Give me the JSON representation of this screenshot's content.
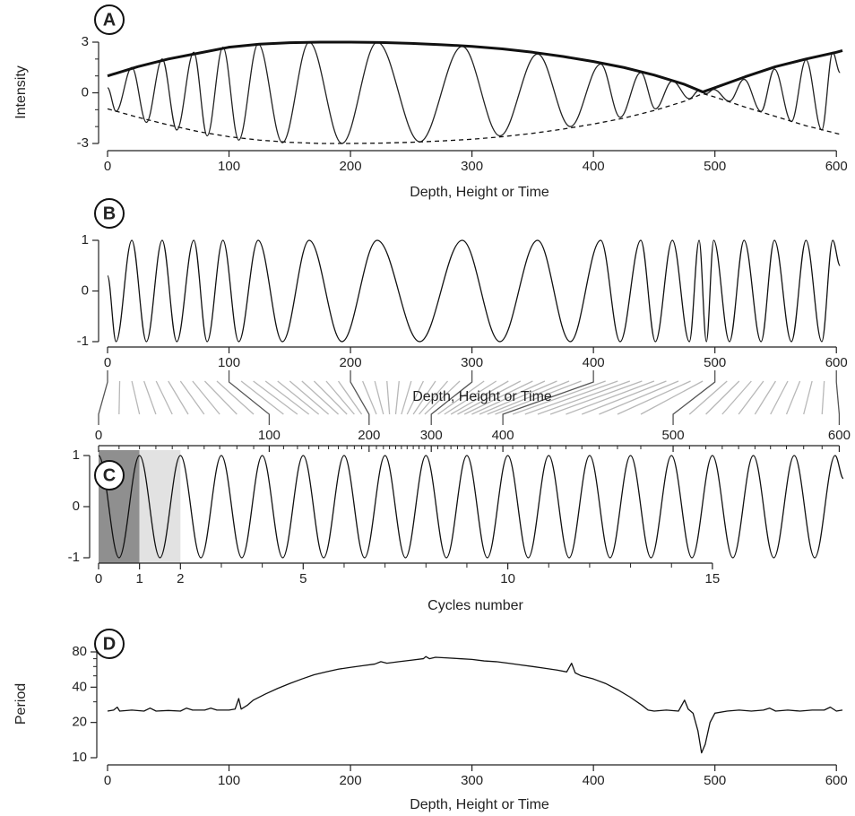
{
  "chart_data": [
    {
      "type": "line",
      "label": "A",
      "ylabel": "Intensity",
      "xlabel": "Depth, Height or Time",
      "xlim": [
        0,
        605
      ],
      "xticks": [
        0,
        100,
        200,
        300,
        400,
        500,
        600
      ],
      "ylim": [
        -3,
        3
      ],
      "yticks": [
        -3,
        0,
        3
      ],
      "yminor": [
        -2,
        -1,
        1,
        2
      ],
      "series": [
        {
          "color": "#222222",
          "style": "thin",
          "interpolation": "extrema",
          "x": [
            0,
            7,
            20,
            32,
            45,
            57,
            71,
            82,
            95,
            108,
            124,
            144,
            166,
            193,
            222,
            257,
            292,
            323,
            354,
            381,
            406,
            422,
            439,
            451,
            465,
            479,
            487,
            493,
            499,
            512,
            524,
            538,
            549,
            563,
            575,
            588,
            597,
            603
          ],
          "values": [
            0.3,
            -1.1,
            1.5,
            -1.75,
            2.0,
            -2.2,
            2.4,
            -2.55,
            2.7,
            -2.8,
            2.9,
            -2.95,
            3.0,
            -3.0,
            3.0,
            -2.9,
            2.75,
            -2.55,
            2.3,
            -2.0,
            1.7,
            -1.45,
            1.2,
            -0.95,
            0.7,
            -0.35,
            0.15,
            -0.05,
            0.2,
            -0.5,
            0.8,
            -1.1,
            1.4,
            -1.7,
            1.95,
            -2.2,
            2.4,
            1.2
          ]
        },
        {
          "color": "#111111",
          "style": "thick",
          "interpolation": "linear",
          "x": [
            0,
            25,
            50,
            75,
            100,
            125,
            150,
            175,
            200,
            225,
            250,
            275,
            300,
            325,
            350,
            375,
            400,
            425,
            450,
            475,
            490,
            500,
            525,
            550,
            575,
            600,
            605
          ],
          "values": [
            1.0,
            1.55,
            2.0,
            2.35,
            2.7,
            2.88,
            2.97,
            3.0,
            3.0,
            2.98,
            2.93,
            2.85,
            2.75,
            2.6,
            2.4,
            2.15,
            1.85,
            1.5,
            1.05,
            0.5,
            0.05,
            0.3,
            0.95,
            1.55,
            2.0,
            2.4,
            2.5
          ]
        },
        {
          "color": "#111111",
          "style": "dashed",
          "interpolation": "linear",
          "x": [
            0,
            25,
            50,
            75,
            100,
            125,
            150,
            175,
            200,
            225,
            250,
            275,
            300,
            325,
            350,
            375,
            400,
            425,
            450,
            475,
            490,
            500,
            525,
            550,
            575,
            600,
            605
          ],
          "values": [
            -0.95,
            -1.45,
            -1.9,
            -2.3,
            -2.6,
            -2.8,
            -2.93,
            -3.0,
            -3.0,
            -2.98,
            -2.93,
            -2.85,
            -2.75,
            -2.6,
            -2.4,
            -2.15,
            -1.85,
            -1.5,
            -1.05,
            -0.5,
            -0.05,
            -0.25,
            -0.85,
            -1.4,
            -1.95,
            -2.4,
            -2.5
          ]
        }
      ]
    },
    {
      "type": "line",
      "label": "B",
      "xlabel": "Depth, Height or Time",
      "xlim": [
        0,
        605
      ],
      "xticks": [
        0,
        100,
        200,
        300,
        400,
        500,
        600
      ],
      "ylim": [
        -1,
        1
      ],
      "yticks": [
        -1,
        0,
        1
      ],
      "series": [
        {
          "color": "#111111",
          "style": "thin",
          "interpolation": "extrema",
          "x": [
            0,
            7,
            20,
            32,
            45,
            57,
            71,
            82,
            95,
            108,
            124,
            144,
            166,
            193,
            222,
            257,
            292,
            323,
            354,
            381,
            406,
            422,
            439,
            451,
            465,
            479,
            487,
            493,
            499,
            512,
            524,
            538,
            549,
            563,
            575,
            588,
            597,
            603
          ],
          "values": [
            0.3,
            -1,
            1,
            -1,
            1,
            -1,
            1,
            -1,
            1,
            -1,
            1,
            -1,
            1,
            -1,
            1,
            -1,
            1,
            -1,
            1,
            -1,
            1,
            -1,
            1,
            -1,
            1,
            -1,
            1,
            -1,
            1,
            -1,
            1,
            -1,
            1,
            -1,
            1,
            -1,
            1,
            0.5
          ]
        }
      ]
    },
    {
      "type": "line",
      "label": "C",
      "xlabel": "Cycles number",
      "xlim": [
        0,
        18.2
      ],
      "xticks": [
        0,
        1,
        2,
        5,
        10,
        15
      ],
      "xminor": [
        3,
        4,
        6,
        7,
        8,
        9,
        11,
        12,
        13,
        14
      ],
      "ylim": [
        -1,
        1
      ],
      "yticks": [
        -1,
        0,
        1
      ],
      "bands": [
        {
          "from": 0,
          "to": 1,
          "color": "#8f8f8f"
        },
        {
          "from": 1,
          "to": 2,
          "color": "#e2e2e2"
        }
      ],
      "depth_axis": {
        "ticks": [
          0,
          100,
          200,
          300,
          400,
          500,
          600
        ],
        "cycles": [
          0,
          4.17,
          6.61,
          8.13,
          9.88,
          14.04,
          18.1
        ]
      },
      "depth_lines": {
        "depths": [
          10,
          20,
          30,
          40,
          50,
          60,
          70,
          80,
          90,
          110,
          120,
          130,
          140,
          150,
          160,
          170,
          180,
          190,
          210,
          220,
          230,
          240,
          250,
          260,
          270,
          280,
          290,
          310,
          320,
          330,
          340,
          350,
          360,
          370,
          380,
          390,
          410,
          420,
          430,
          440,
          450,
          460,
          470,
          480,
          490,
          510,
          520,
          530,
          540,
          550,
          560,
          570,
          580,
          590
        ],
        "cycles": [
          0.5,
          1,
          1.4,
          1.8,
          2.19,
          2.58,
          2.96,
          3.38,
          3.79,
          4.52,
          4.86,
          5.14,
          5.38,
          5.62,
          5.86,
          6.07,
          6.25,
          6.43,
          6.79,
          6.96,
          7.11,
          7.26,
          7.4,
          7.54,
          7.69,
          7.83,
          7.97,
          8.29,
          8.45,
          8.61,
          8.77,
          8.94,
          9.12,
          9.31,
          9.5,
          9.69,
          10.12,
          10.42,
          10.73,
          11.04,
          11.42,
          11.81,
          12.23,
          12.68,
          13.25,
          14.44,
          14.84,
          15.24,
          15.64,
          16.04,
          16.42,
          16.81,
          17.23,
          17.68
        ]
      },
      "series": [
        {
          "color": "#111111",
          "style": "thin",
          "interpolation": "extrema",
          "x": [
            0,
            0.5,
            1,
            1.5,
            2,
            2.5,
            3,
            3.5,
            4,
            4.5,
            5,
            5.5,
            6,
            6.5,
            7,
            7.5,
            8,
            8.5,
            9,
            9.5,
            10,
            10.5,
            11,
            11.5,
            12,
            12.5,
            13,
            13.5,
            14,
            14.5,
            15,
            15.5,
            16,
            16.5,
            17,
            17.5,
            18,
            18.2
          ],
          "values": [
            1,
            -1,
            1,
            -1,
            1,
            -1,
            1,
            -1,
            1,
            -1,
            1,
            -1,
            1,
            -1,
            1,
            -1,
            1,
            -1,
            1,
            -1,
            1,
            -1,
            1,
            -1,
            1,
            -1,
            1,
            -1,
            1,
            -1,
            1,
            -1,
            1,
            -1,
            1,
            -1,
            1,
            0.55
          ]
        }
      ]
    },
    {
      "type": "line",
      "label": "D",
      "ylabel": "Period",
      "xlabel": "Depth, Height or Time",
      "xlim": [
        0,
        605
      ],
      "xticks": [
        0,
        100,
        200,
        300,
        400,
        500,
        600
      ],
      "ylim": [
        10,
        80
      ],
      "yticks": [
        10,
        20,
        40,
        80
      ],
      "yminor": [
        30,
        50,
        60,
        70
      ],
      "log_y": true,
      "series": [
        {
          "color": "#111111",
          "style": "thin",
          "interpolation": "linear",
          "x": [
            0,
            5,
            8,
            10,
            20,
            30,
            35,
            40,
            50,
            60,
            65,
            70,
            80,
            85,
            90,
            100,
            105,
            108,
            110,
            115,
            120,
            130,
            140,
            150,
            160,
            170,
            180,
            190,
            200,
            210,
            220,
            225,
            230,
            240,
            250,
            260,
            262,
            265,
            270,
            280,
            290,
            300,
            310,
            320,
            330,
            340,
            350,
            360,
            370,
            378,
            382,
            385,
            390,
            400,
            410,
            420,
            430,
            440,
            445,
            450,
            460,
            470,
            475,
            478,
            482,
            486,
            489,
            492,
            496,
            500,
            510,
            520,
            530,
            540,
            545,
            550,
            560,
            570,
            580,
            590,
            595,
            600,
            605
          ],
          "values": [
            25,
            25.5,
            27,
            25,
            25.5,
            25,
            26.5,
            25,
            25.3,
            25,
            26.5,
            25.5,
            25.5,
            26.5,
            25.5,
            25.5,
            26,
            32,
            26,
            28,
            31,
            35,
            39,
            43,
            47,
            51,
            54,
            57,
            59,
            61,
            63,
            66,
            64,
            66,
            68,
            70,
            73,
            70,
            72,
            71,
            70,
            69,
            67,
            66,
            64,
            62,
            60,
            58,
            56,
            54,
            64,
            53,
            50,
            47,
            43,
            38,
            33,
            28,
            25.5,
            25,
            25.5,
            25,
            31,
            26,
            24,
            17,
            11,
            13,
            20,
            24,
            25,
            25.5,
            25,
            25.5,
            26.5,
            25,
            25.5,
            25,
            25.5,
            25.5,
            27,
            25,
            25.5
          ]
        }
      ]
    }
  ]
}
